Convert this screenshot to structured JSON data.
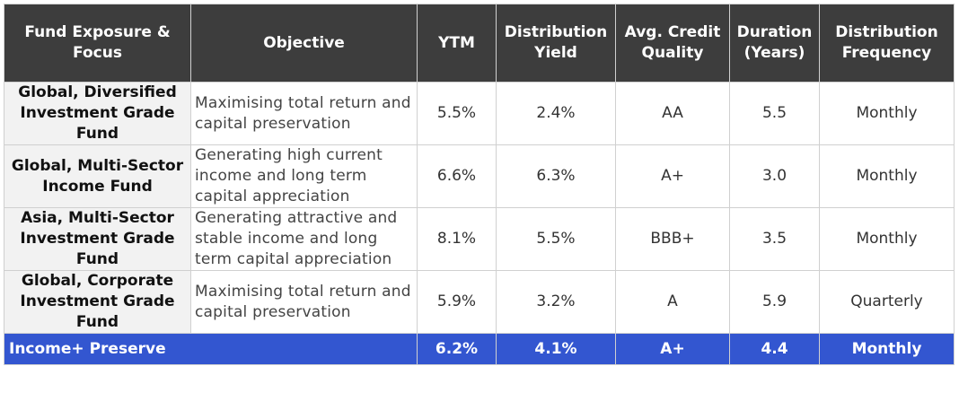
{
  "headers": [
    "Fund  Exposure & Focus",
    "Objective",
    "YTM",
    "Distribution Yield",
    "Avg. Credit Quality",
    "Duration (Years)",
    "Distribution Frequency"
  ],
  "rows": [
    {
      "fund": "Global, Diversified Investment Grade Fund",
      "objective": "Maximising total return and capital preservation",
      "ytm": "5.5%",
      "yield": "2.4%",
      "credit": "AA",
      "duration": "5.5",
      "frequency": "Monthly"
    },
    {
      "fund": "Global, Multi-Sector Income Fund",
      "objective": "Generating high current income and long term capital appreciation",
      "ytm": "6.6%",
      "yield": "6.3%",
      "credit": "A+",
      "duration": "3.0",
      "frequency": "Monthly"
    },
    {
      "fund": "Asia, Multi-Sector Investment Grade Fund",
      "objective": "Generating attractive and stable income and long term capital appreciation",
      "ytm": "8.1%",
      "yield": "5.5%",
      "credit": "BBB+",
      "duration": "3.5",
      "frequency": "Monthly"
    },
    {
      "fund": "Global, Corporate Investment Grade Fund",
      "objective": "Maximising total return and capital preservation",
      "ytm": "5.9%",
      "yield": "3.2%",
      "credit": "A",
      "duration": "5.9",
      "frequency": "Quarterly"
    }
  ],
  "total": {
    "fund": "Income+ Preserve",
    "ytm": "6.2%",
    "yield": "4.1%",
    "credit": "A+",
    "duration": "4.4",
    "frequency": "Monthly"
  },
  "colors": {
    "header_bg": "#3d3d3d",
    "total_bg": "#3356d0",
    "fund_col_bg": "#f2f2f2"
  }
}
